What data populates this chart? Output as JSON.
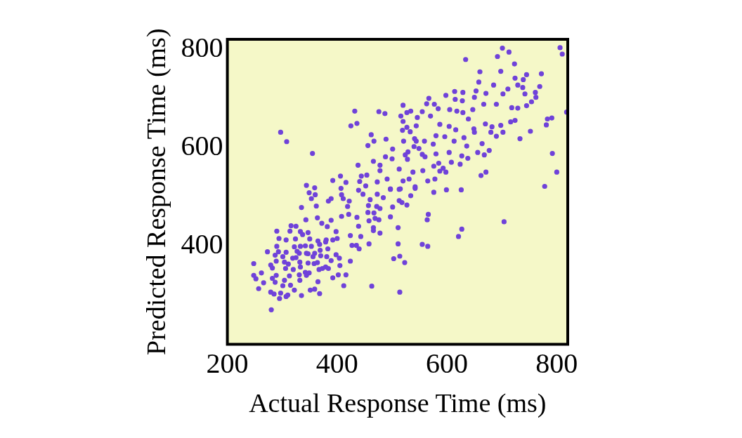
{
  "chart_data": {
    "type": "scatter",
    "xlabel": "Actual Response Time (ms)",
    "ylabel": "Predicted Response Time (ms)",
    "xlim": [
      200,
      820
    ],
    "ylim": [
      200,
      820
    ],
    "xticks": [
      200,
      400,
      600,
      800
    ],
    "yticks": [
      400,
      600,
      800
    ],
    "legend": false,
    "marker": "circle",
    "series": [
      {
        "color": "#6f42d9",
        "x": [
          701,
          713,
          806,
          810,
          634,
          692,
          723,
          660,
          698,
          772,
          724,
          745,
          739,
          658,
          685,
          729,
          769,
          711,
          738,
          761,
          742,
          762,
          702,
          671,
          653,
          629,
          614,
          598,
          615,
          628,
          650,
          667,
          690,
          718,
          729,
          745,
          754,
          818,
          783,
          791,
          781,
          752,
          733,
          792,
          800,
          778,
          716,
          724,
          698,
          670,
          682,
          680,
          690,
          702,
          649,
          650,
          639,
          647,
          629,
          618,
          605,
          584,
          577,
          563,
          567,
          555,
          570,
          587,
          604,
          616,
          631,
          613,
          596,
          580,
          575,
          559,
          544,
          541,
          544,
          546,
          520,
          516,
          527,
          534,
          520,
          527,
          519,
          533,
          521,
          540,
          549,
          529,
          524,
          528,
          555,
          560,
          580,
          604,
          627,
          638,
          656,
          668,
          677,
          664,
          636,
          662,
          671,
          489,
          501,
          488,
          500,
          467,
          462,
          456,
          476,
          487,
          432,
          436,
          425,
          297,
          308,
          355,
          438,
          466,
          478,
          478,
          513,
          538,
          556,
          576,
          587,
          598,
          608,
          624,
          593,
          585,
          565,
          578,
          542,
          520,
          531,
          491,
          473,
          454,
          444,
          441,
          452,
          406,
          392,
          416,
          407,
          344,
          359,
          515,
          497,
          599,
          626,
          576,
          349,
          360,
          353,
          362,
          335,
          389,
          384,
          408,
          411,
          422,
          419,
          439,
          447,
          460,
          473,
          484,
          457,
          472,
          478,
          497,
          513,
          513,
          518,
          527,
          534,
          542,
          501,
          456,
          467,
          458,
          469,
          476,
          497,
          436,
          421,
          408,
          439,
          466,
          466,
          478,
          511,
          443,
          424,
          458,
          435,
          427,
          440,
          511,
          503,
          514,
          523,
          555,
          565,
          566,
          564,
          704,
          627,
          621,
          463,
          514,
          412,
          424,
          416,
          405,
          404,
          398,
          400,
          398,
          392,
          380,
          383,
          381,
          389,
          379,
          392,
          402,
          389,
          382,
          364,
          372,
          343,
          316,
          325,
          314,
          333,
          347,
          290,
          294,
          307,
          324,
          337,
          350,
          365,
          379,
          322,
          333,
          342,
          353,
          368,
          290,
          273,
          293,
          307,
          327,
          331,
          344,
          359,
          369,
          287,
          301,
          319,
          325,
          347,
          356,
          370,
          289,
          304,
          311,
          332,
          347,
          358,
          364,
          248,
          279,
          282,
          306,
          320,
          333,
          342,
          349,
          367,
          373,
          384,
          262,
          248,
          289,
          313,
          331,
          344,
          252,
          266,
          282,
          287,
          304,
          315,
          332,
          365,
          301,
          322,
          257,
          279,
          285,
          297,
          307,
          310,
          295,
          335,
          351,
          359,
          368,
          280
        ],
        "values": [
          802,
          794,
          803,
          790,
          779,
          785,
          770,
          754,
          755,
          750,
          741,
          748,
          738,
          733,
          727,
          727,
          724,
          719,
          722,
          712,
          709,
          702,
          709,
          710,
          715,
          712,
          714,
          706,
          698,
          695,
          702,
          688,
          688,
          681,
          680,
          685,
          693,
          672,
          658,
          660,
          646,
          633,
          618,
          588,
          550,
          521,
          652,
          655,
          645,
          648,
          642,
          631,
          623,
          631,
          638,
          631,
          658,
          677,
          671,
          674,
          677,
          679,
          688,
          689,
          700,
          673,
          664,
          647,
          643,
          636,
          620,
          613,
          622,
          624,
          607,
          613,
          613,
          618,
          644,
          661,
          686,
          664,
          671,
          674,
          653,
          641,
          635,
          632,
          613,
          602,
          598,
          591,
          585,
          576,
          586,
          581,
          587,
          590,
          583,
          578,
          590,
          585,
          594,
          608,
          603,
          543,
          550,
          617,
          597,
          581,
          577,
          613,
          626,
          604,
          673,
          669,
          674,
          649,
          644,
          631,
          612,
          588,
          564,
          572,
          564,
          553,
          556,
          550,
          553,
          562,
          552,
          550,
          570,
          566,
          558,
          568,
          532,
          536,
          520,
          532,
          536,
          536,
          530,
          544,
          542,
          531,
          522,
          542,
          533,
          529,
          517,
          523,
          518,
          516,
          516,
          514,
          514,
          509,
          508,
          504,
          496,
          481,
          478,
          496,
          491,
          504,
          496,
          491,
          480,
          513,
          505,
          494,
          505,
          498,
          482,
          480,
          476,
          515,
          515,
          492,
          488,
          483,
          502,
          517,
          479,
          468,
          467,
          451,
          456,
          453,
          459,
          458,
          464,
          460,
          440,
          437,
          431,
          426,
          437,
          419,
          421,
          404,
          401,
          401,
          394,
          404,
          374,
          379,
          366,
          403,
          399,
          464,
          453,
          449,
          434,
          419,
          318,
          306,
          319,
          369,
          341,
          360,
          375,
          382,
          415,
          429,
          412,
          412,
          394,
          378,
          370,
          357,
          335,
          341,
          452,
          439,
          457,
          446,
          453,
          441,
          440,
          430,
          429,
          427,
          430,
          415,
          412,
          414,
          423,
          414,
          410,
          408,
          398,
          399,
          400,
          399,
          403,
          399,
          388,
          388,
          387,
          389,
          385,
          385,
          385,
          391,
          381,
          378,
          375,
          376,
          384,
          378,
          380,
          369,
          367,
          363,
          367,
          365,
          364,
          366,
          364,
          361,
          355,
          354,
          352,
          357,
          346,
          345,
          352,
          354,
          354,
          345,
          340,
          340,
          339,
          341,
          340,
          333,
          325,
          334,
          326,
          330,
          320,
          330,
          327,
          319,
          310,
          313,
          306,
          302,
          304,
          297,
          300,
          293,
          299,
          310,
          312,
          303,
          270
        ]
      }
    ]
  }
}
